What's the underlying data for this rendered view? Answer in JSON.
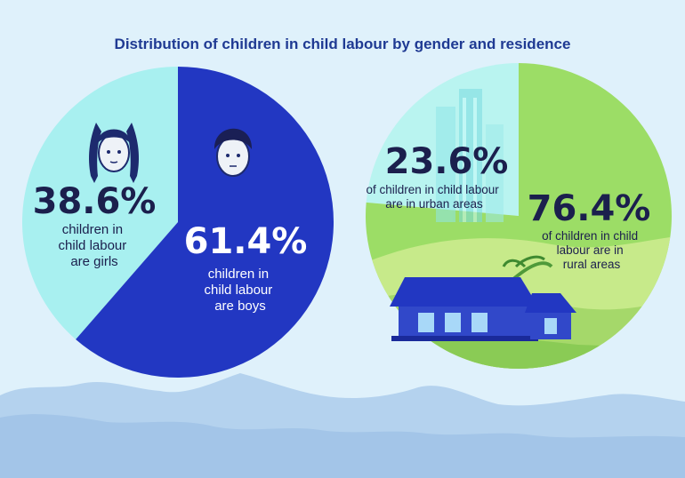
{
  "title": "Distribution of children in child labour by gender and residence",
  "colors": {
    "background": "#dff1fb",
    "girls": "#a8f0f0",
    "boys": "#2237c2",
    "urban": "#b9f4f0",
    "rural": "#9cdd66",
    "mountain": "#b4d2ee",
    "title": "#1f3a93",
    "text_dark": "#1b1f4d"
  },
  "chart_data": [
    {
      "type": "pie",
      "name": "gender",
      "slices": [
        {
          "label": "children in child labour are girls",
          "value": 38.6,
          "display": "38.6%",
          "text_lines": [
            "children in",
            "child labour",
            "are girls"
          ],
          "icon": "girl-face-icon"
        },
        {
          "label": "children in child labour are boys",
          "value": 61.4,
          "display": "61.4%",
          "text_lines": [
            "children in",
            "child labour",
            "are boys"
          ],
          "icon": "boy-face-icon"
        }
      ]
    },
    {
      "type": "pie",
      "name": "residence",
      "slices": [
        {
          "label": "of children in child labour are in urban areas",
          "value": 23.6,
          "display": "23.6%",
          "text_lines": [
            "of children in child labour",
            "are in urban areas"
          ],
          "icon": "city-buildings-icon"
        },
        {
          "label": "of children in child labour are in rural areas",
          "value": 76.4,
          "display": "76.4%",
          "text_lines": [
            "of children in child",
            "labour are in",
            "rural areas"
          ],
          "icon": "rural-house-icon"
        }
      ]
    }
  ]
}
